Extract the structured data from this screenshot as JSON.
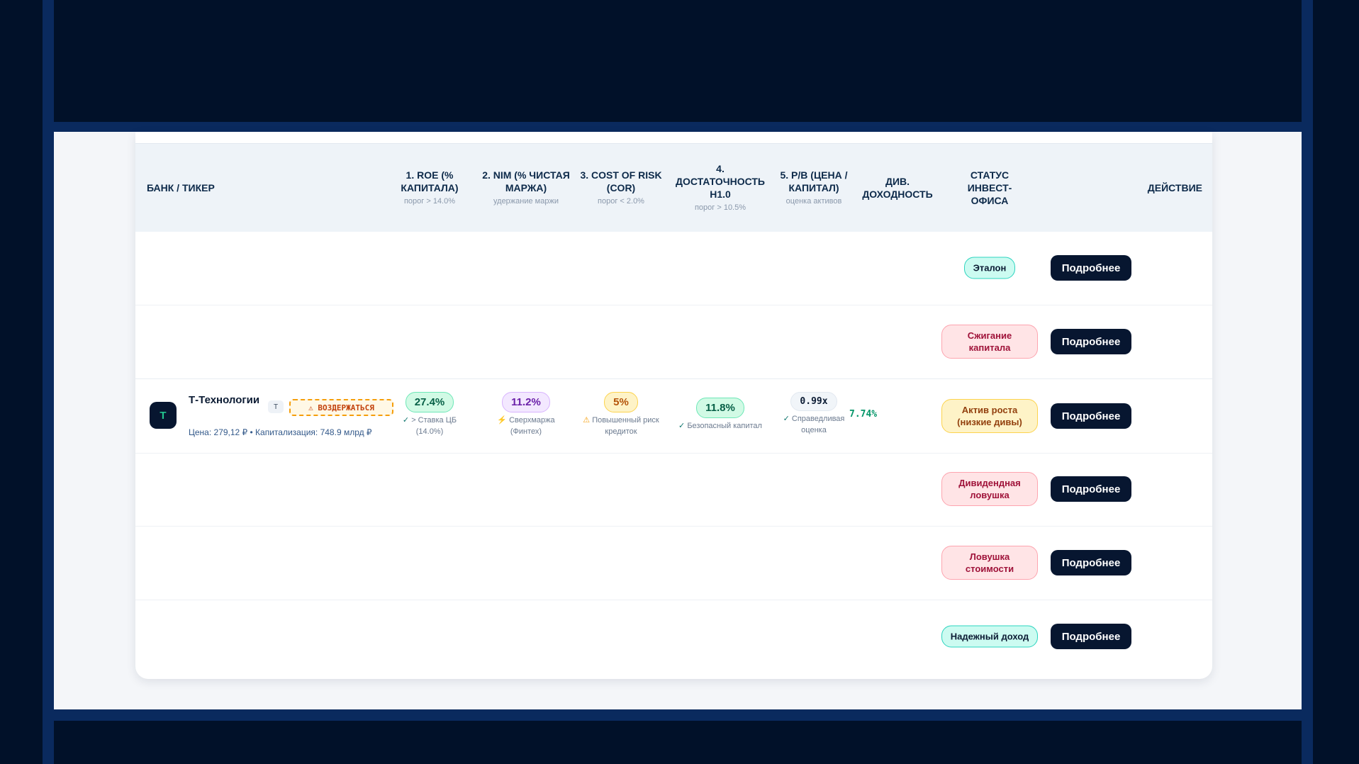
{
  "table": {
    "headers": [
      {
        "title": "Банк / Тикер",
        "sub": ""
      },
      {
        "title": "1. ROE (% капитала)",
        "sub": "порог > 14.0%"
      },
      {
        "title": "2. NIM (% чистая маржа)",
        "sub": "удержание маржи"
      },
      {
        "title": "3. Cost of Risk (CoR)",
        "sub": "порог < 2.0%"
      },
      {
        "title": "4. Достаточность Н1.0",
        "sub": "порог > 10.5%"
      },
      {
        "title": "5. P/B (Цена / Капитал)",
        "sub": "оценка активов"
      },
      {
        "title": "Див. доходность",
        "sub": ""
      },
      {
        "title": "Статус Инвест-офиса",
        "sub": ""
      },
      {
        "title": "Действие",
        "sub": ""
      }
    ],
    "rows": [
      {
        "status": "Эталон",
        "status_color": "#0d9488",
        "action": "Подробнее"
      },
      {
        "status": "Сжигание капитала",
        "status_color": "#e11d48",
        "action": "Подробнее"
      },
      {
        "status": "Актив роста (низкие дивы)",
        "status_color": "#d97706",
        "action": "Подробнее",
        "bank": {
          "logo": "Т",
          "name": "Т-Технологии",
          "ticker": "T",
          "badge": "⚠ ВОЗДЕРЖАТЬСЯ",
          "meta": "Цена: 279,12 ₽ • Капитализация: 748.9 млрд ₽"
        },
        "metrics": {
          "roe": {
            "value": "27.4%",
            "mark": "✓",
            "note": "> Ставка ЦБ (14.0%)"
          },
          "nim": {
            "value": "11.2%",
            "mark": "⚡",
            "note": "Сверхмаржа (Финтех)"
          },
          "cor": {
            "value": "5%",
            "mark": "⚠",
            "note": "Повышенный риск кредиток"
          },
          "h1": {
            "value": "11.8%",
            "mark": "✓",
            "note": "Безопасный капитал"
          },
          "pb": {
            "value": "0.99x",
            "mark": "✓",
            "note": "Справедливая оценка"
          },
          "div": {
            "value": "7.74%"
          }
        }
      },
      {
        "status": "Дивидендная ловушка",
        "status_color": "#e11d48",
        "action": "Подробнее"
      },
      {
        "status": "Ловушка стоимости",
        "status_color": "#e11d48",
        "action": "Подробнее"
      },
      {
        "status": "Надежный доход",
        "status_color": "#059669",
        "action": "Подробнее"
      }
    ]
  }
}
